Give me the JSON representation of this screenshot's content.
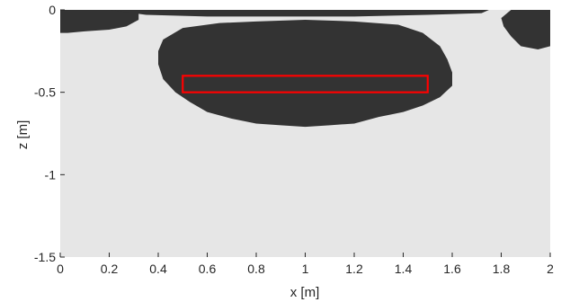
{
  "chart_data": {
    "type": "heatmap",
    "title": "",
    "xlabel": "x [m]",
    "ylabel": "z [m]",
    "xlim": [
      0,
      2
    ],
    "ylim": [
      -1.5,
      0
    ],
    "xticks": [
      "0",
      "0.2",
      "0.4",
      "0.6",
      "0.8",
      "1",
      "1.2",
      "1.4",
      "1.6",
      "1.8",
      "2"
    ],
    "xtick_values": [
      0,
      0.2,
      0.4,
      0.6,
      0.8,
      1.0,
      1.2,
      1.4,
      1.6,
      1.8,
      2.0
    ],
    "yticks": [
      "0",
      "-0.5",
      "-1",
      "-1.5"
    ],
    "ytick_values": [
      0,
      -0.5,
      -1,
      -1.5
    ],
    "background_color": "#e6e6e6",
    "region_color": "#333333",
    "region_fill": [
      {
        "name": "left-region",
        "points": [
          [
            0,
            0
          ],
          [
            0.32,
            0
          ],
          [
            0.32,
            -0.06
          ],
          [
            0.27,
            -0.1
          ],
          [
            0.2,
            -0.12
          ],
          [
            0.1,
            -0.13
          ],
          [
            0.03,
            -0.14
          ],
          [
            0,
            -0.14
          ]
        ]
      },
      {
        "name": "center-region",
        "points": [
          [
            0.4,
            -0.25
          ],
          [
            0.42,
            -0.18
          ],
          [
            0.5,
            -0.11
          ],
          [
            0.65,
            -0.08
          ],
          [
            0.8,
            -0.07
          ],
          [
            1.0,
            -0.06
          ],
          [
            1.2,
            -0.07
          ],
          [
            1.38,
            -0.09
          ],
          [
            1.48,
            -0.14
          ],
          [
            1.55,
            -0.22
          ],
          [
            1.58,
            -0.3
          ],
          [
            1.6,
            -0.38
          ],
          [
            1.6,
            -0.46
          ],
          [
            1.55,
            -0.53
          ],
          [
            1.48,
            -0.58
          ],
          [
            1.4,
            -0.62
          ],
          [
            1.3,
            -0.65
          ],
          [
            1.2,
            -0.69
          ],
          [
            1.1,
            -0.7
          ],
          [
            1.0,
            -0.71
          ],
          [
            0.9,
            -0.7
          ],
          [
            0.8,
            -0.69
          ],
          [
            0.7,
            -0.66
          ],
          [
            0.6,
            -0.62
          ],
          [
            0.53,
            -0.56
          ],
          [
            0.47,
            -0.5
          ],
          [
            0.42,
            -0.42
          ],
          [
            0.4,
            -0.33
          ]
        ]
      },
      {
        "name": "top-strip",
        "points": [
          [
            0.2,
            0
          ],
          [
            1.75,
            0
          ],
          [
            1.72,
            -0.02
          ],
          [
            1.5,
            -0.03
          ],
          [
            1.2,
            -0.04
          ],
          [
            0.9,
            -0.04
          ],
          [
            0.6,
            -0.04
          ],
          [
            0.35,
            -0.03
          ]
        ]
      },
      {
        "name": "right-region",
        "points": [
          [
            1.84,
            0
          ],
          [
            2.0,
            0
          ],
          [
            2.0,
            -0.22
          ],
          [
            1.95,
            -0.24
          ],
          [
            1.88,
            -0.22
          ],
          [
            1.84,
            -0.16
          ],
          [
            1.81,
            -0.1
          ],
          [
            1.8,
            -0.05
          ]
        ]
      }
    ],
    "rectangle": {
      "x": [
        0.5,
        1.5
      ],
      "z": [
        -0.5,
        -0.4
      ],
      "color": "#ff0000"
    }
  }
}
